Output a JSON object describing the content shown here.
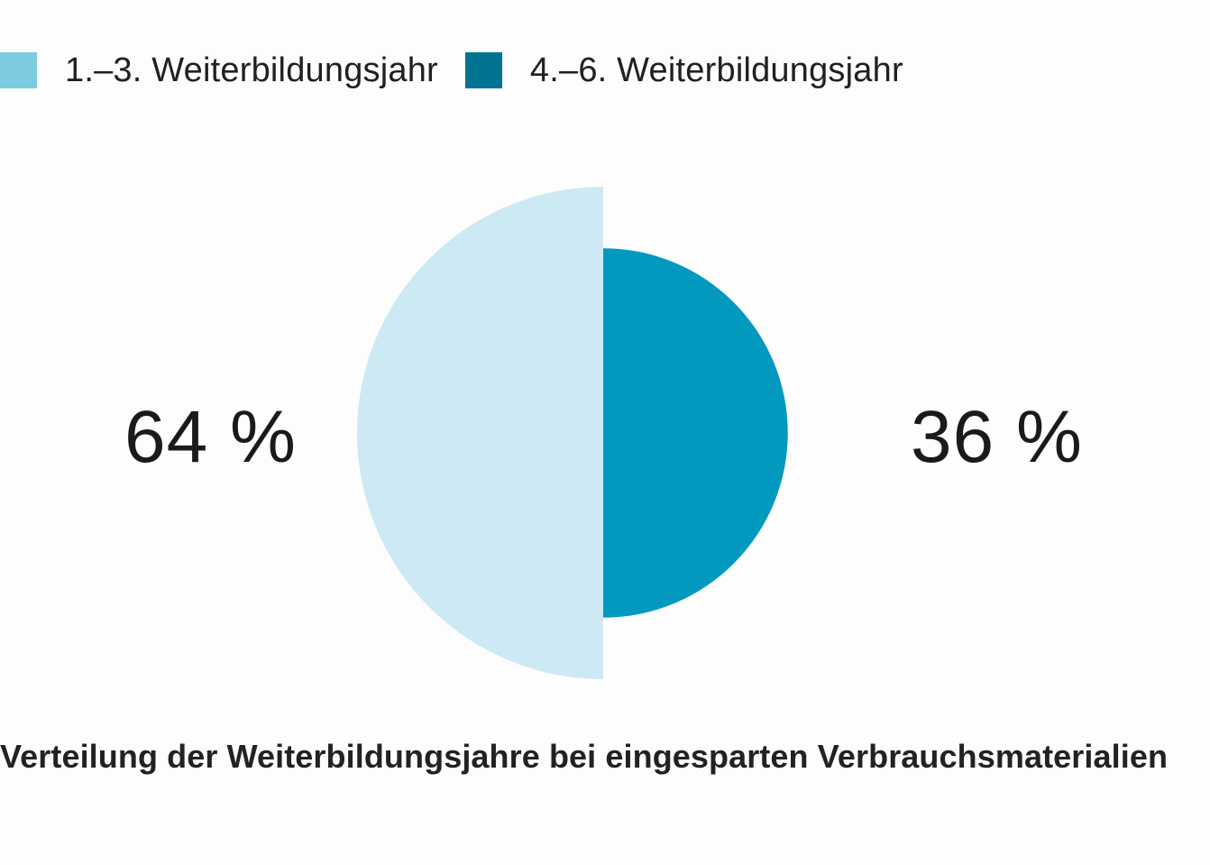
{
  "legend": [
    {
      "label": "1.–3.  Weiterbildungsjahr",
      "color": "#7ccbe1"
    },
    {
      "label": "4.–6.  Weiterbildungsjahr",
      "color": "#007491"
    }
  ],
  "chart_data": {
    "type": "pie",
    "title": "Verteilung der Weiterbildungsjahre bei eingesparten Verbrauchsmaterialien",
    "categories": [
      "1.–3.  Weiterbildungsjahr",
      "4.–6.  Weiterbildungsjahr"
    ],
    "values": [
      64,
      36
    ],
    "value_labels": [
      "64 %",
      "36 %"
    ],
    "slice_colors": [
      "#cde9f4",
      "#0399bf"
    ],
    "legend_position": "top-left"
  }
}
